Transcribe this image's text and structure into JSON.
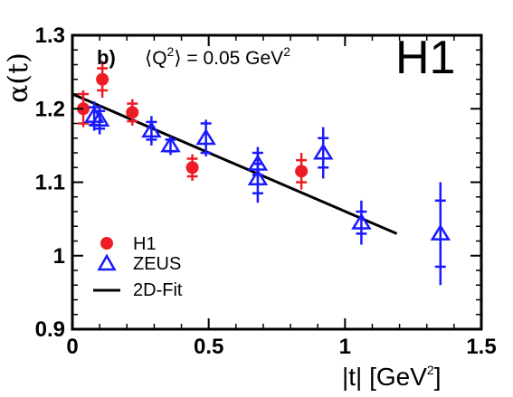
{
  "chart_data": {
    "type": "scatter",
    "experiment_label": "H1",
    "panel_label": "b)",
    "condition": {
      "base": "⟨Q",
      "sup": "2",
      "rest": "⟩ = 0.05 GeV",
      "unit_sup": "2"
    },
    "xlabel": {
      "base": "|t|  [GeV",
      "sup": "2",
      "close": "]"
    },
    "ylabel": "α(t)",
    "xlim": [
      0,
      1.5
    ],
    "ylim": [
      0.9,
      1.3
    ],
    "xticks": [
      {
        "value": 0,
        "label": "0"
      },
      {
        "value": 0.5,
        "label": "0.5"
      },
      {
        "value": 1,
        "label": "1"
      },
      {
        "value": 1.5,
        "label": "1.5"
      }
    ],
    "yticks": [
      {
        "value": 0.9,
        "label": "0.9"
      },
      {
        "value": 1.0,
        "label": "1"
      },
      {
        "value": 1.1,
        "label": "1.1"
      },
      {
        "value": 1.2,
        "label": "1.2"
      },
      {
        "value": 1.3,
        "label": "1.3"
      }
    ],
    "series": [
      {
        "name": "H1",
        "marker": "circle",
        "color": "#ee1c24",
        "points": [
          {
            "x": 0.04,
            "y": 1.2,
            "err": 0.02,
            "err_tot": 0.025
          },
          {
            "x": 0.11,
            "y": 1.24,
            "err": 0.015,
            "err_tot": 0.025
          },
          {
            "x": 0.22,
            "y": 1.195,
            "err": 0.012,
            "err_tot": 0.018
          },
          {
            "x": 0.44,
            "y": 1.12,
            "err": 0.012,
            "err_tot": 0.018
          },
          {
            "x": 0.84,
            "y": 1.115,
            "err": 0.015,
            "err_tot": 0.025
          }
        ]
      },
      {
        "name": "ZEUS",
        "marker": "triangle",
        "color": "#1a1aff",
        "points": [
          {
            "x": 0.08,
            "y": 1.19,
            "err": 0.012,
            "err_tot": 0.02
          },
          {
            "x": 0.1,
            "y": 1.185,
            "err": 0.012,
            "err_tot": 0.02
          },
          {
            "x": 0.29,
            "y": 1.17,
            "err": 0.012,
            "err_tot": 0.02
          },
          {
            "x": 0.36,
            "y": 1.15,
            "err": 0.008,
            "err_tot": 0.013
          },
          {
            "x": 0.49,
            "y": 1.16,
            "err": 0.02,
            "err_tot": 0.025
          },
          {
            "x": 0.68,
            "y": 1.125,
            "err": 0.015,
            "err_tot": 0.023
          },
          {
            "x": 0.68,
            "y": 1.105,
            "err": 0.02,
            "err_tot": 0.033
          },
          {
            "x": 0.92,
            "y": 1.14,
            "err": 0.02,
            "err_tot": 0.035
          },
          {
            "x": 1.06,
            "y": 1.045,
            "err": 0.015,
            "err_tot": 0.03
          },
          {
            "x": 1.35,
            "y": 1.03,
            "err": 0.045,
            "err_tot": 0.07
          }
        ]
      },
      {
        "name": "2D-Fit",
        "marker": "line",
        "color": "#000000",
        "x": [
          0,
          1.19
        ],
        "y": [
          1.22,
          1.03
        ]
      }
    ],
    "legend": {
      "placement": "bottom-left",
      "entries": [
        "H1",
        "ZEUS",
        "2D-Fit"
      ]
    }
  }
}
